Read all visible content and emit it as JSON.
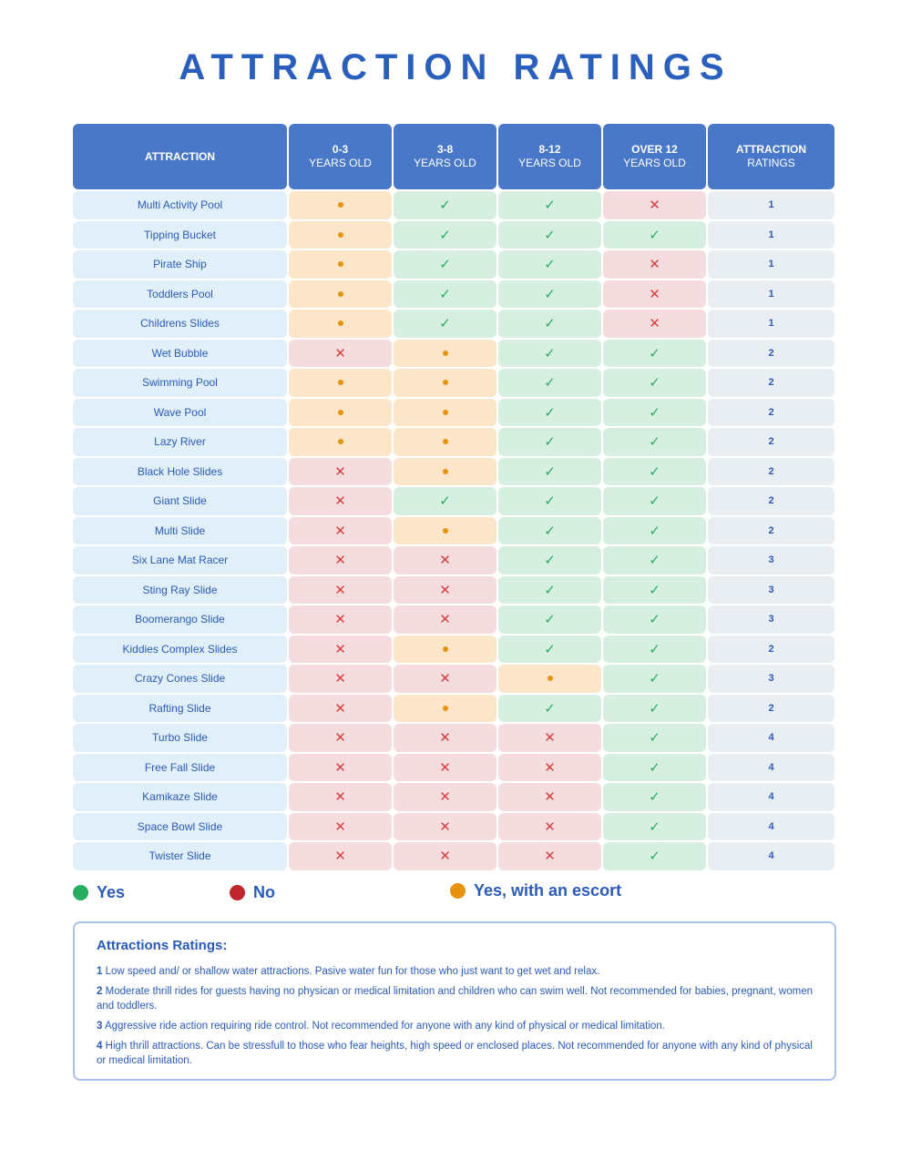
{
  "title": "ATTRACTION RATINGS",
  "headers": [
    {
      "l1": "ATTRACTION",
      "l2": ""
    },
    {
      "l1": "0-3",
      "l2": "YEARS OLD"
    },
    {
      "l1": "3-8",
      "l2": "YEARS OLD"
    },
    {
      "l1": "8-12",
      "l2": "YEARS OLD"
    },
    {
      "l1": "OVER 12",
      "l2": "YEARS OLD"
    },
    {
      "l1": "ATTRACTION",
      "l2": "RATINGS"
    }
  ],
  "rows": [
    {
      "name": "Multi Activity Pool",
      "ages": [
        "escort",
        "yes",
        "yes",
        "no"
      ],
      "rating": "1"
    },
    {
      "name": "Tipping Bucket",
      "ages": [
        "escort",
        "yes",
        "yes",
        "yes"
      ],
      "rating": "1"
    },
    {
      "name": "Pirate Ship",
      "ages": [
        "escort",
        "yes",
        "yes",
        "no"
      ],
      "rating": "1"
    },
    {
      "name": "Toddlers Pool",
      "ages": [
        "escort",
        "yes",
        "yes",
        "no"
      ],
      "rating": "1"
    },
    {
      "name": "Childrens Slides",
      "ages": [
        "escort",
        "yes",
        "yes",
        "no"
      ],
      "rating": "1"
    },
    {
      "name": "Wet Bubble",
      "ages": [
        "no",
        "escort",
        "yes",
        "yes"
      ],
      "rating": "2"
    },
    {
      "name": "Swimming Pool",
      "ages": [
        "escort",
        "escort",
        "yes",
        "yes"
      ],
      "rating": "2"
    },
    {
      "name": "Wave Pool",
      "ages": [
        "escort",
        "escort",
        "yes",
        "yes"
      ],
      "rating": "2"
    },
    {
      "name": "Lazy River",
      "ages": [
        "escort",
        "escort",
        "yes",
        "yes"
      ],
      "rating": "2"
    },
    {
      "name": "Black Hole Slides",
      "ages": [
        "no",
        "escort",
        "yes",
        "yes"
      ],
      "rating": "2"
    },
    {
      "name": "Giant Slide",
      "ages": [
        "no",
        "yes",
        "yes",
        "yes"
      ],
      "rating": "2"
    },
    {
      "name": "Multi Slide",
      "ages": [
        "no",
        "escort",
        "yes",
        "yes"
      ],
      "rating": "2"
    },
    {
      "name": "Six Lane Mat Racer",
      "ages": [
        "no",
        "no",
        "yes",
        "yes"
      ],
      "rating": "3"
    },
    {
      "name": "Sting Ray Slide",
      "ages": [
        "no",
        "no",
        "yes",
        "yes"
      ],
      "rating": "3"
    },
    {
      "name": "Boomerango Slide",
      "ages": [
        "no",
        "no",
        "yes",
        "yes"
      ],
      "rating": "3"
    },
    {
      "name": "Kiddies Complex Slides",
      "ages": [
        "no",
        "escort",
        "yes",
        "yes"
      ],
      "rating": "2"
    },
    {
      "name": "Crazy Cones Slide",
      "ages": [
        "no",
        "no",
        "escort",
        "yes"
      ],
      "rating": "3"
    },
    {
      "name": "Rafting Slide",
      "ages": [
        "no",
        "escort",
        "yes",
        "yes"
      ],
      "rating": "2"
    },
    {
      "name": "Turbo Slide",
      "ages": [
        "no",
        "no",
        "no",
        "yes"
      ],
      "rating": "4"
    },
    {
      "name": "Free Fall Slide",
      "ages": [
        "no",
        "no",
        "no",
        "yes"
      ],
      "rating": "4"
    },
    {
      "name": "Kamikaze Slide",
      "ages": [
        "no",
        "no",
        "no",
        "yes"
      ],
      "rating": "4"
    },
    {
      "name": "Space Bowl Slide",
      "ages": [
        "no",
        "no",
        "no",
        "yes"
      ],
      "rating": "4"
    },
    {
      "name": "Twister Slide",
      "ages": [
        "no",
        "no",
        "no",
        "yes"
      ],
      "rating": "4"
    }
  ],
  "symbols": {
    "yes": "✓",
    "no": "✕"
  },
  "legend": {
    "yes": {
      "label": "Yes",
      "color": "#27ae60"
    },
    "no": {
      "label": "No",
      "color": "#c0262d"
    },
    "escort": {
      "label": "Yes, with an escort",
      "color": "#e8920e"
    }
  },
  "notes": {
    "title": "Attractions Ratings:",
    "items": [
      {
        "num": "1",
        "text": "Low speed and/ or shallow water attractions. Pasive water  fun for those who just want to get wet and relax."
      },
      {
        "num": "2",
        "text": "Moderate thrill rides for guests having no physican or medical limitation and children who can swim well. Not recommended for babies, pregnant, women and toddlers."
      },
      {
        "num": "3",
        "text": "Aggressive ride action requiring ride control. Not recommended for anyone with any kind of physical or medical limitation."
      },
      {
        "num": "4",
        "text": "High thrill attractions. Can be stressfull to those who fear heights, high speed or enclosed places. Not recommended for anyone with any kind of physical or medical limitation."
      }
    ]
  }
}
